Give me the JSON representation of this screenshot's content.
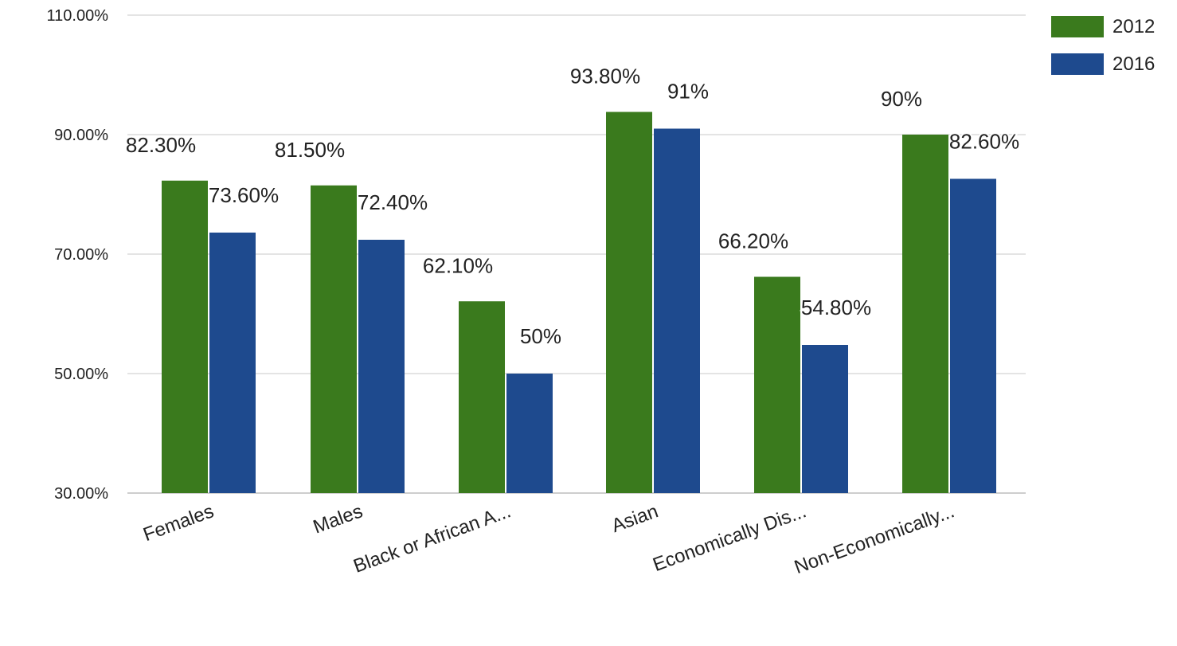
{
  "chart_data": {
    "type": "bar",
    "categories": [
      "Females",
      "Males",
      "Black or African A...",
      "Asian",
      "Economically Dis...",
      "Non-Economically..."
    ],
    "series": [
      {
        "name": "2012",
        "color": "#3a7a1d",
        "values": [
          82.3,
          81.5,
          62.1,
          93.8,
          66.2,
          90.0
        ],
        "labels": [
          "82.30%",
          "81.50%",
          "62.10%",
          "93.80%",
          "66.20%",
          "90%"
        ]
      },
      {
        "name": "2016",
        "color": "#1e4a8e",
        "values": [
          73.6,
          72.4,
          50.0,
          91.0,
          54.8,
          82.6
        ],
        "labels": [
          "73.60%",
          "72.40%",
          "50%",
          "91%",
          "54.80%",
          "82.60%"
        ]
      }
    ],
    "yticks": [
      30,
      50,
      70,
      90,
      110
    ],
    "ytick_labels": [
      "30.00%",
      "50.00%",
      "70.00%",
      "90.00%",
      "110.00%"
    ],
    "ylim": [
      30,
      110
    ],
    "title": "",
    "xlabel": "",
    "ylabel": "",
    "grid": true,
    "legend_position": "top-right"
  }
}
